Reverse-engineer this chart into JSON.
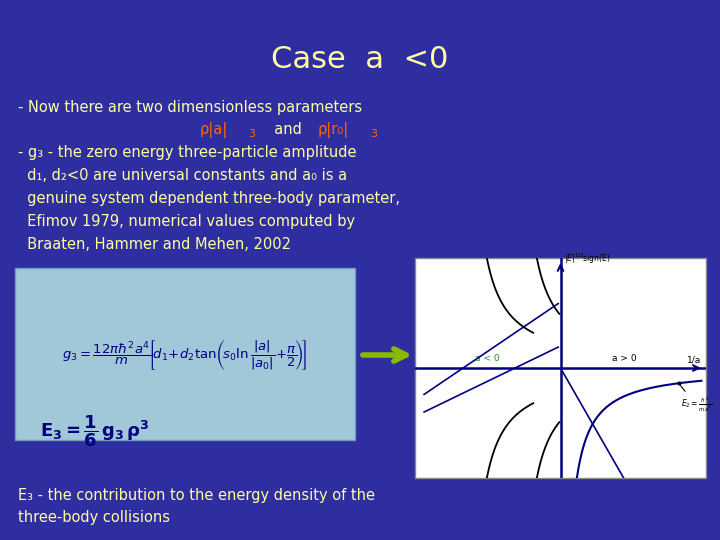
{
  "background_color": "#2E2EA0",
  "title": "Case  a  <0",
  "title_color": "#FFFFA0",
  "title_fontsize": 22,
  "title_font": "Courier New",
  "text_color": "#FFFFA0",
  "orange_color": "#FF6600",
  "body_fontsize": 10.5,
  "body_font": "Courier New",
  "line1": "- Now there are two dimensionless parameters",
  "line3": "- g₃ - the zero energy three-particle amplitude",
  "line4": "  d₁, d₂<0 are universal constants and a₀ is a",
  "line5": "  genuine system dependent three-body parameter,",
  "line6": "  Efimov 1979, numerical values computed by",
  "line7": "  Braaten, Hammer and Mehen, 2002",
  "bottom_line1": "E₃ - the contribution to the energy density of the",
  "bottom_line2": "three-body collisions",
  "box_bg": "#A0C8D8",
  "plot_bg": "#FFFFFF"
}
